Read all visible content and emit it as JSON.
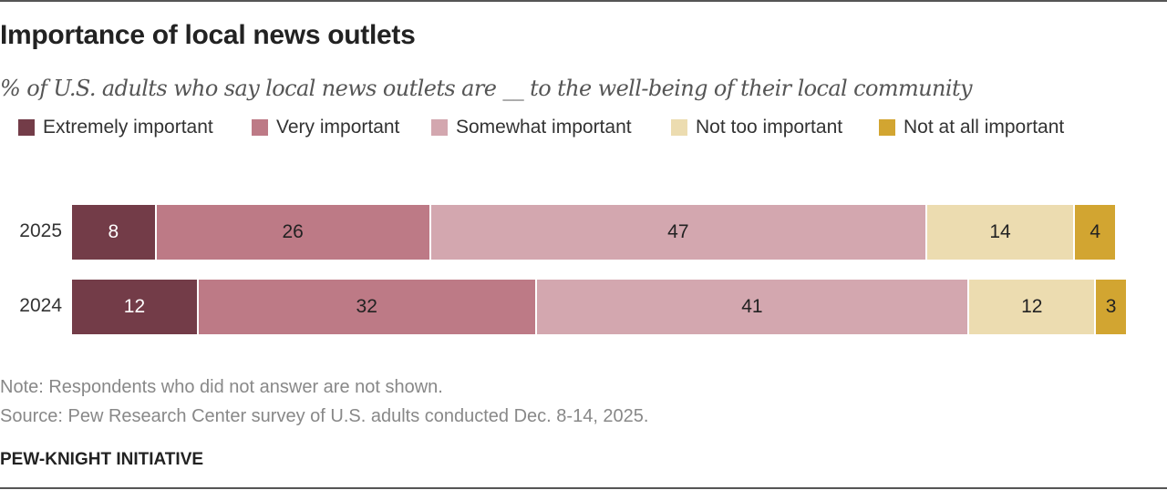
{
  "chart_data": {
    "type": "bar",
    "orientation": "horizontal-stacked",
    "title": "Importance of local news outlets",
    "subtitle": "% of U.S. adults who say local news outlets are __ to the well-being of their local community",
    "categories": [
      "2025",
      "2024"
    ],
    "series": [
      {
        "name": "Extremely important",
        "color": "#733c48",
        "values": [
          8,
          12
        ]
      },
      {
        "name": "Very important",
        "color": "#bd7a86",
        "values": [
          26,
          32
        ]
      },
      {
        "name": "Somewhat important",
        "color": "#d3a7af",
        "values": [
          47,
          41
        ]
      },
      {
        "name": "Not too important",
        "color": "#ecdcb0",
        "values": [
          14,
          12
        ]
      },
      {
        "name": "Not at all important",
        "color": "#d2a531",
        "values": [
          4,
          3
        ]
      }
    ],
    "xlim": [
      0,
      100
    ],
    "legend": "top-left",
    "note": "Note: Respondents who did not answer are not shown.",
    "source": "Source: Pew Research Center survey of U.S. adults conducted Dec. 8-14, 2025.",
    "brand": "PEW-KNIGHT INITIATIVE"
  }
}
